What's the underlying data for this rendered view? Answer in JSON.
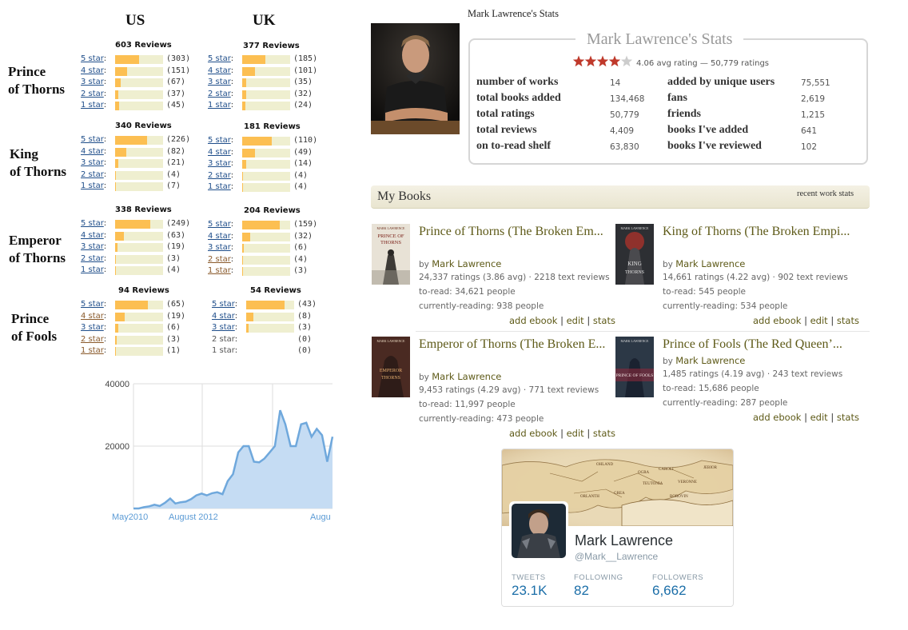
{
  "left": {
    "col_us": "US",
    "col_uk": "UK",
    "books": [
      {
        "label_line1": "Prince",
        "label_line2": "of Thorns",
        "us": {
          "reviews": "603 Reviews",
          "rows": [
            {
              "star": "5 star",
              "count": "(303)",
              "frac": 0.5
            },
            {
              "star": "4 star",
              "count": "(151)",
              "frac": 0.25
            },
            {
              "star": "3 star",
              "count": "(67)",
              "frac": 0.11
            },
            {
              "star": "2 star",
              "count": "(37)",
              "frac": 0.06
            },
            {
              "star": "1 star",
              "count": "(45)",
              "frac": 0.075
            }
          ]
        },
        "uk": {
          "reviews": "377 Reviews",
          "rows": [
            {
              "star": "5 star",
              "count": "(185)",
              "frac": 0.49
            },
            {
              "star": "4 star",
              "count": "(101)",
              "frac": 0.27
            },
            {
              "star": "3 star",
              "count": "(35)",
              "frac": 0.09
            },
            {
              "star": "2 star",
              "count": "(32)",
              "frac": 0.085
            },
            {
              "star": "1 star",
              "count": "(24)",
              "frac": 0.064
            }
          ]
        }
      },
      {
        "label_line1": "King",
        "label_line2": "of Thorns",
        "us": {
          "reviews": "340 Reviews",
          "rows": [
            {
              "star": "5 star",
              "count": "(226)",
              "frac": 0.66
            },
            {
              "star": "4 star",
              "count": "(82)",
              "frac": 0.24
            },
            {
              "star": "3 star",
              "count": "(21)",
              "frac": 0.06
            },
            {
              "star": "2 star",
              "count": "(4)",
              "frac": 0.012
            },
            {
              "star": "1 star",
              "count": "(7)",
              "frac": 0.02
            }
          ]
        },
        "uk": {
          "reviews": "181 Reviews",
          "rows": [
            {
              "star": "5 star",
              "count": "(110)",
              "frac": 0.61
            },
            {
              "star": "4 star",
              "count": "(49)",
              "frac": 0.27
            },
            {
              "star": "3 star",
              "count": "(14)",
              "frac": 0.077
            },
            {
              "star": "2 star",
              "count": "(4)",
              "frac": 0.022
            },
            {
              "star": "1 star",
              "count": "(4)",
              "frac": 0.022
            }
          ]
        }
      },
      {
        "label_line1": "Emperor",
        "label_line2": "of Thorns",
        "us": {
          "reviews": "338 Reviews",
          "rows": [
            {
              "star": "5 star",
              "count": "(249)",
              "frac": 0.74
            },
            {
              "star": "4 star",
              "count": "(63)",
              "frac": 0.19
            },
            {
              "star": "3 star",
              "count": "(19)",
              "frac": 0.056
            },
            {
              "star": "2 star",
              "count": "(3)",
              "frac": 0.009
            },
            {
              "star": "1 star",
              "count": "(4)",
              "frac": 0.012
            }
          ]
        },
        "uk": {
          "reviews": "204 Reviews",
          "rows": [
            {
              "star": "5 star",
              "count": "(159)",
              "frac": 0.78
            },
            {
              "star": "4 star",
              "count": "(32)",
              "frac": 0.16
            },
            {
              "star": "3 star",
              "count": "(6)",
              "frac": 0.03
            },
            {
              "star": "2 star",
              "count": "(4)",
              "frac": 0.02
            },
            {
              "star": "1 star",
              "count": "(3)",
              "frac": 0.015
            }
          ]
        }
      },
      {
        "label_line1": "Prince",
        "label_line2": "of Fools",
        "us": {
          "reviews": "94 Reviews",
          "rows": [
            {
              "star": "5 star",
              "count": "(65)",
              "frac": 0.69
            },
            {
              "star": "4 star",
              "count": "(19)",
              "frac": 0.2
            },
            {
              "star": "3 star",
              "count": "(6)",
              "frac": 0.064
            },
            {
              "star": "2 star",
              "count": "(3)",
              "frac": 0.032
            },
            {
              "star": "1 star",
              "count": "(1)",
              "frac": 0.011
            }
          ]
        },
        "uk": {
          "reviews": "54 Reviews",
          "rows": [
            {
              "star": "5 star",
              "count": "(43)",
              "frac": 0.8
            },
            {
              "star": "4 star",
              "count": "(8)",
              "frac": 0.15
            },
            {
              "star": "3 star",
              "count": "(3)",
              "frac": 0.056
            },
            {
              "star": "2 star",
              "count": "(0)",
              "frac": 0
            },
            {
              "star": "1 star",
              "count": "(0)",
              "frac": 0
            }
          ]
        }
      }
    ]
  },
  "chart_data": {
    "type": "area",
    "y_ticks": [
      "40000",
      "20000"
    ],
    "ylim": [
      0,
      40000
    ],
    "x_tick_labels": [
      "May2010",
      "August 2012",
      "Augu"
    ],
    "color": "#5b9bd5",
    "values": [
      0,
      0,
      400,
      700,
      1200,
      800,
      1800,
      3200,
      1600,
      2000,
      2200,
      3000,
      4200,
      4800,
      4200,
      4900,
      5200,
      4600,
      8800,
      11000,
      18000,
      20000,
      20000,
      15000,
      14800,
      16000,
      18000,
      20000,
      31500,
      27000,
      20000,
      20000,
      27000,
      27500,
      23000,
      25500,
      23500,
      15000,
      23000
    ]
  },
  "profile": {
    "small_title": "Mark Lawrence's Stats",
    "box_title": "Mark Lawrence's Stats",
    "rating_text": "4.06 avg rating — 50,779 ratings",
    "rating_value": 4.06,
    "star_color": "#c0392b",
    "stats_left": [
      {
        "k": "number of works",
        "v": "14"
      },
      {
        "k": "total books added",
        "v": "134,468"
      },
      {
        "k": "total ratings",
        "v": "50,779"
      },
      {
        "k": "total reviews",
        "v": "4,409"
      },
      {
        "k": "on to-read shelf",
        "v": "63,830"
      }
    ],
    "stats_right": [
      {
        "k": "added by unique users",
        "v": "75,551"
      },
      {
        "k": "fans",
        "v": "2,619"
      },
      {
        "k": "friends",
        "v": "1,215"
      },
      {
        "k": "books I've added",
        "v": "641"
      },
      {
        "k": "books I've reviewed",
        "v": "102"
      }
    ]
  },
  "mybooks": {
    "title": "My Books",
    "link": "recent work stats",
    "books": [
      {
        "title": "Prince of Thorns (The Broken Em...",
        "by": "by",
        "author": "Mark Lawrence",
        "ratings": "24,337 ratings (3.86 avg) · 2218 text reviews",
        "toread": "to-read: 34,621 people",
        "reading": "currently-reading: 938 people",
        "cover_text": "PRINCE OF THORNS"
      },
      {
        "title": "King of Thorns (The Broken Empi...",
        "by": "by",
        "author": "Mark Lawrence",
        "ratings": "14,661 ratings (4.22 avg) · 902 text reviews",
        "toread": "to-read: 545 people",
        "reading": "currently-reading: 534 people",
        "cover_text": "KING OF THORNS"
      },
      {
        "title": "Emperor of Thorns (The Broken E...",
        "by": "by",
        "author": "Mark Lawrence",
        "ratings": "9,453 ratings (4.29 avg) · 771 text reviews",
        "toread": "to-read: 11,997 people",
        "reading": "currently-reading: 473 people",
        "cover_text": "EMPEROR OF THORNS"
      },
      {
        "title": "Prince of Fools (The Red Queen’...",
        "by": "by",
        "author": "Mark Lawrence",
        "ratings": "1,485 ratings (4.19 avg) · 243 text reviews",
        "toread": "to-read: 15,686 people",
        "reading": "currently-reading: 287 people",
        "cover_text": "PRINCE OF FOOLS"
      }
    ],
    "link_ebook": "add ebook",
    "link_edit": "edit",
    "link_stats": "stats",
    "sep": "|"
  },
  "twitter": {
    "name": "Mark Lawrence",
    "handle": "@Mark__Lawrence",
    "tweets_label": "TWEETS",
    "tweets": "23.1K",
    "following_label": "FOLLOWING",
    "following": "82",
    "followers_label": "FOLLOWERS",
    "followers": "6,662",
    "map_labels": [
      "OHLAND",
      "CAROLI",
      "VERONNE",
      "ORLANTH",
      "GREA",
      "BOROVIN",
      "OGRA",
      "JEBIOR",
      "TEUTONIA"
    ]
  }
}
